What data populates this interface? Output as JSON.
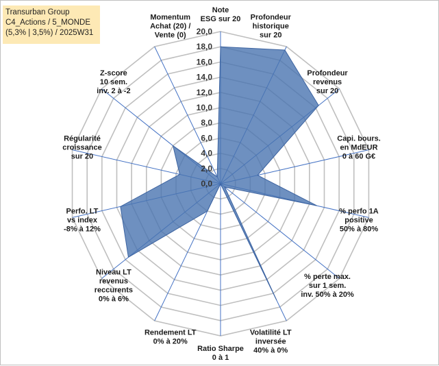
{
  "title_box": {
    "line1": "Transurban Group",
    "line2": "C4_Actions / 5_MONDE",
    "line3": "(5,3% | 3,5%) / 2025W31"
  },
  "chart_data": {
    "type": "radar",
    "rmin": 0,
    "rmax": 20,
    "tick_step": 2,
    "tick_labels": [
      "0,0",
      "2,0",
      "4,0",
      "6,0",
      "8,0",
      "10,0",
      "12,0",
      "14,0",
      "16,0",
      "18,0",
      "20,0"
    ],
    "axes": [
      {
        "label": [
          "Note",
          "ESG sur 20"
        ]
      },
      {
        "label": [
          "Profondeur",
          "historique",
          "sur 20"
        ]
      },
      {
        "label": [
          "Profondeur",
          "revenus",
          "sur 20"
        ]
      },
      {
        "label": [
          "Capi. bours.",
          "en MdEUR",
          "0 à 60 G€"
        ]
      },
      {
        "label": [
          "% perfo 1A",
          "positive",
          "50% à 80%"
        ]
      },
      {
        "label": [
          "% perte max.",
          "sur 1 sem.",
          "inv. 50% à 20%"
        ]
      },
      {
        "label": [
          "Volatilité LT",
          "inversée",
          "40% à 0%"
        ]
      },
      {
        "label": [
          "Ratio Sharpe",
          "0 à 1"
        ]
      },
      {
        "label": [
          "Rendement LT",
          "0% à 20%"
        ]
      },
      {
        "label": [
          "Niveau LT",
          "revenus",
          "reccurents",
          "0% à 6%"
        ]
      },
      {
        "label": [
          "Perfo. LT",
          "vs index",
          "-8% à 12%"
        ]
      },
      {
        "label": [
          "Régularité",
          "croissance",
          "sur 20"
        ]
      },
      {
        "label": [
          "Z-score",
          "10 sem.",
          "inv. 2 à -2"
        ]
      },
      {
        "label": [
          "Momentum",
          "Achat (20) /",
          "Vente (0)"
        ]
      }
    ],
    "series": [
      {
        "values": [
          18.0,
          19.5,
          16.5,
          5.0,
          13.0,
          0.7,
          17.0,
          0.0,
          4.0,
          15.5,
          13.5,
          5.5,
          8.0,
          1.0
        ],
        "fill": "#4a74b0",
        "fill_opacity": 0.8,
        "stroke": "#3c63a0"
      }
    ],
    "grid_color": "#bfbfbf",
    "spoke_color": "#4472c4"
  }
}
